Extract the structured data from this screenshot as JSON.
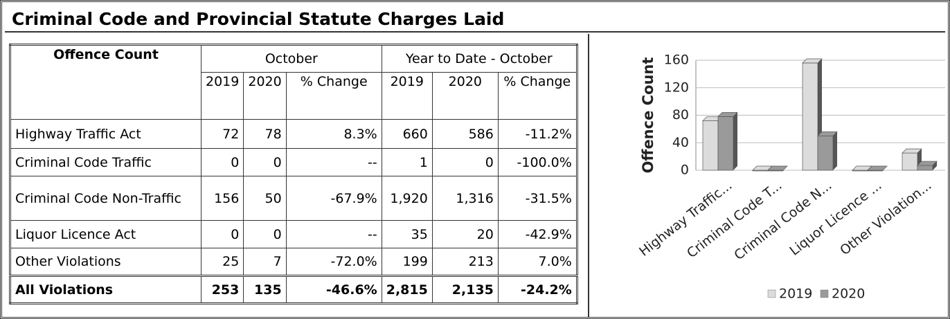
{
  "header": {
    "title": "Criminal Code and Provincial Statute Charges Laid"
  },
  "table": {
    "corner": "Offence Count",
    "groups": [
      "October",
      "Year to Date - October"
    ],
    "subheaders": [
      "2019",
      "2020",
      "% Change",
      "2019",
      "2020",
      "% Change"
    ],
    "rows": [
      [
        "Highway Traffic Act",
        "72",
        "78",
        "8.3%",
        "660",
        "586",
        "-11.2%"
      ],
      [
        "Criminal Code Traffic",
        "0",
        "0",
        "--",
        "1",
        "0",
        "-100.0%"
      ],
      [
        "Criminal Code Non-Traffic",
        "156",
        "50",
        "-67.9%",
        "1,920",
        "1,316",
        "-31.5%"
      ],
      [
        "Liquor Licence Act",
        "0",
        "0",
        "--",
        "35",
        "20",
        "-42.9%"
      ],
      [
        "Other Violations",
        "25",
        "7",
        "-72.0%",
        "199",
        "213",
        "7.0%"
      ],
      [
        "All Violations",
        "253",
        "135",
        "-46.6%",
        "2,815",
        "2,135",
        "-24.2%"
      ]
    ]
  },
  "chart_data": {
    "type": "bar",
    "ylabel": "Offence Count",
    "categories": [
      "Highway Traffic...",
      "Criminal Code T...",
      "Criminal Code N...",
      "Liquor Licence ...",
      "Other Violation..."
    ],
    "series": [
      {
        "name": "2019",
        "color": "#dcdcdc",
        "values": [
          72,
          0,
          156,
          0,
          25
        ]
      },
      {
        "name": "2020",
        "color": "#9a9a9a",
        "values": [
          78,
          0,
          50,
          0,
          7
        ]
      }
    ],
    "ylim": [
      0,
      160
    ],
    "yticks": [
      0,
      40,
      80,
      120,
      160
    ],
    "grid": true,
    "legend": "bottom"
  }
}
